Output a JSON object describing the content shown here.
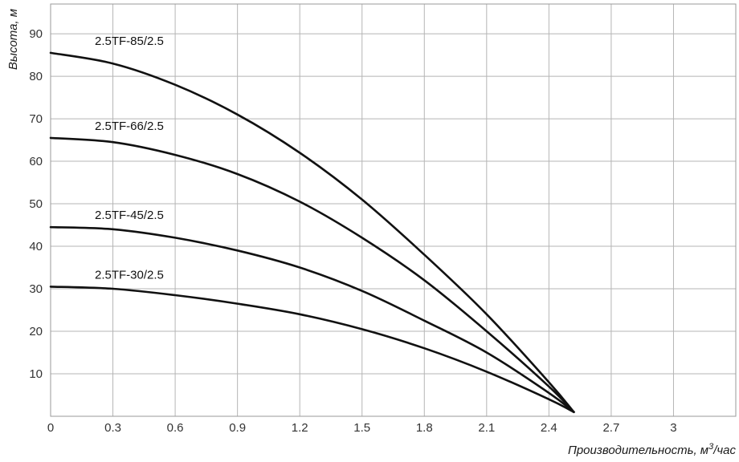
{
  "chart_data": {
    "type": "line",
    "title": "",
    "ylabel": "Высота, м",
    "xlabel_main": "Производительность, м",
    "xlabel_sup": "3",
    "xlabel_tail": "/час",
    "xlim": [
      0,
      3.3
    ],
    "ylim": [
      0,
      97
    ],
    "xticks": [
      0,
      0.3,
      0.6,
      0.9,
      1.2,
      1.5,
      1.8,
      2.1,
      2.4,
      2.7,
      3
    ],
    "xtick_labels": [
      "0",
      "0.3",
      "0.6",
      "0.9",
      "1.2",
      "1.5",
      "1.8",
      "2.1",
      "2.4",
      "2.7",
      "3"
    ],
    "yticks": [
      10,
      20,
      30,
      40,
      50,
      60,
      70,
      80,
      90
    ],
    "ytick_labels": [
      "10",
      "20",
      "30",
      "40",
      "50",
      "60",
      "70",
      "80",
      "90"
    ],
    "grid": true,
    "series": [
      {
        "name": "2.5TF-85/2.5",
        "x": [
          0,
          0.3,
          0.6,
          0.9,
          1.2,
          1.5,
          1.8,
          2.1,
          2.4,
          2.52
        ],
        "y": [
          85.5,
          83,
          78,
          71,
          62,
          51,
          38,
          24,
          8,
          1
        ]
      },
      {
        "name": "2.5TF-66/2.5",
        "x": [
          0,
          0.3,
          0.6,
          0.9,
          1.2,
          1.5,
          1.8,
          2.1,
          2.4,
          2.52
        ],
        "y": [
          65.5,
          64.5,
          61.5,
          57,
          50.5,
          42,
          32,
          20,
          7,
          1
        ]
      },
      {
        "name": "2.5TF-45/2.5",
        "x": [
          0,
          0.3,
          0.6,
          0.9,
          1.2,
          1.5,
          1.8,
          2.1,
          2.4,
          2.52
        ],
        "y": [
          44.5,
          44,
          42,
          39,
          35,
          29.5,
          22.5,
          15,
          5.5,
          1
        ]
      },
      {
        "name": "2.5TF-30/2.5",
        "x": [
          0,
          0.3,
          0.6,
          0.9,
          1.2,
          1.5,
          1.8,
          2.1,
          2.4,
          2.52
        ],
        "y": [
          30.5,
          30,
          28.5,
          26.5,
          24,
          20.5,
          16,
          10.5,
          4,
          1
        ]
      }
    ]
  }
}
